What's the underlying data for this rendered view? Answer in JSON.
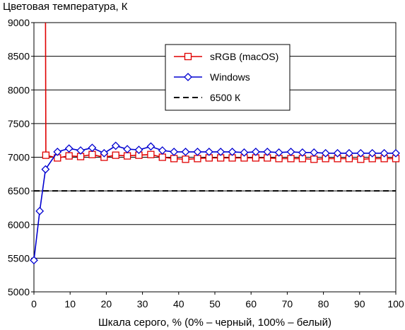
{
  "chart_data": {
    "type": "line",
    "title": "Цветовая температура, К",
    "xlabel": "Шкала серого, % (0% – черный, 100% – белый)",
    "ylabel": "",
    "xlim": [
      0,
      100
    ],
    "ylim": [
      5000,
      9000
    ],
    "x_ticks": [
      "0",
      "10",
      "20",
      "30",
      "40",
      "50",
      "60",
      "70",
      "80",
      "90",
      "100"
    ],
    "y_ticks": [
      "5000",
      "5500",
      "6000",
      "6500",
      "7000",
      "7500",
      "8000",
      "8500",
      "9000"
    ],
    "grid": "horizontal",
    "legend_position": "top-right",
    "series": [
      {
        "name": "sRGB (macOS)",
        "color": "#e00000",
        "marker": "square",
        "line_style": "solid",
        "x": [
          3.2,
          3.3,
          6.5,
          9.7,
          12.9,
          16.1,
          19.4,
          22.6,
          25.8,
          29.0,
          32.3,
          35.5,
          38.7,
          41.9,
          45.2,
          48.4,
          51.6,
          54.8,
          58.1,
          61.3,
          64.5,
          67.7,
          71.0,
          74.2,
          77.4,
          80.6,
          83.9,
          87.1,
          90.3,
          93.5,
          96.8,
          100
        ],
        "y": [
          9000,
          7030,
          6990,
          7020,
          7010,
          7040,
          7000,
          7030,
          7020,
          7030,
          7040,
          7000,
          6980,
          6970,
          6980,
          6990,
          6990,
          6990,
          6990,
          6990,
          6990,
          6980,
          6980,
          6980,
          6970,
          6980,
          6980,
          6980,
          6970,
          6980,
          6980,
          6980
        ]
      },
      {
        "name": "Windows",
        "color": "#0000d0",
        "marker": "diamond",
        "line_style": "solid",
        "x": [
          0,
          1.6,
          3.2,
          6.5,
          9.7,
          12.9,
          16.1,
          19.4,
          22.6,
          25.8,
          29.0,
          32.3,
          35.5,
          38.7,
          41.9,
          45.2,
          48.4,
          51.6,
          54.8,
          58.1,
          61.3,
          64.5,
          67.7,
          71.0,
          74.2,
          77.4,
          80.6,
          83.9,
          87.1,
          90.3,
          93.5,
          96.8,
          100
        ],
        "y": [
          5470,
          6200,
          6820,
          7080,
          7130,
          7100,
          7140,
          7060,
          7170,
          7120,
          7110,
          7160,
          7100,
          7080,
          7080,
          7080,
          7080,
          7080,
          7080,
          7070,
          7080,
          7080,
          7070,
          7080,
          7070,
          7070,
          7060,
          7060,
          7060,
          7060,
          7060,
          7060,
          7060
        ]
      },
      {
        "name": "6500 К",
        "color": "#000000",
        "marker": "none",
        "line_style": "dashed",
        "x": [
          0,
          100
        ],
        "y": [
          6500,
          6500
        ]
      }
    ]
  }
}
